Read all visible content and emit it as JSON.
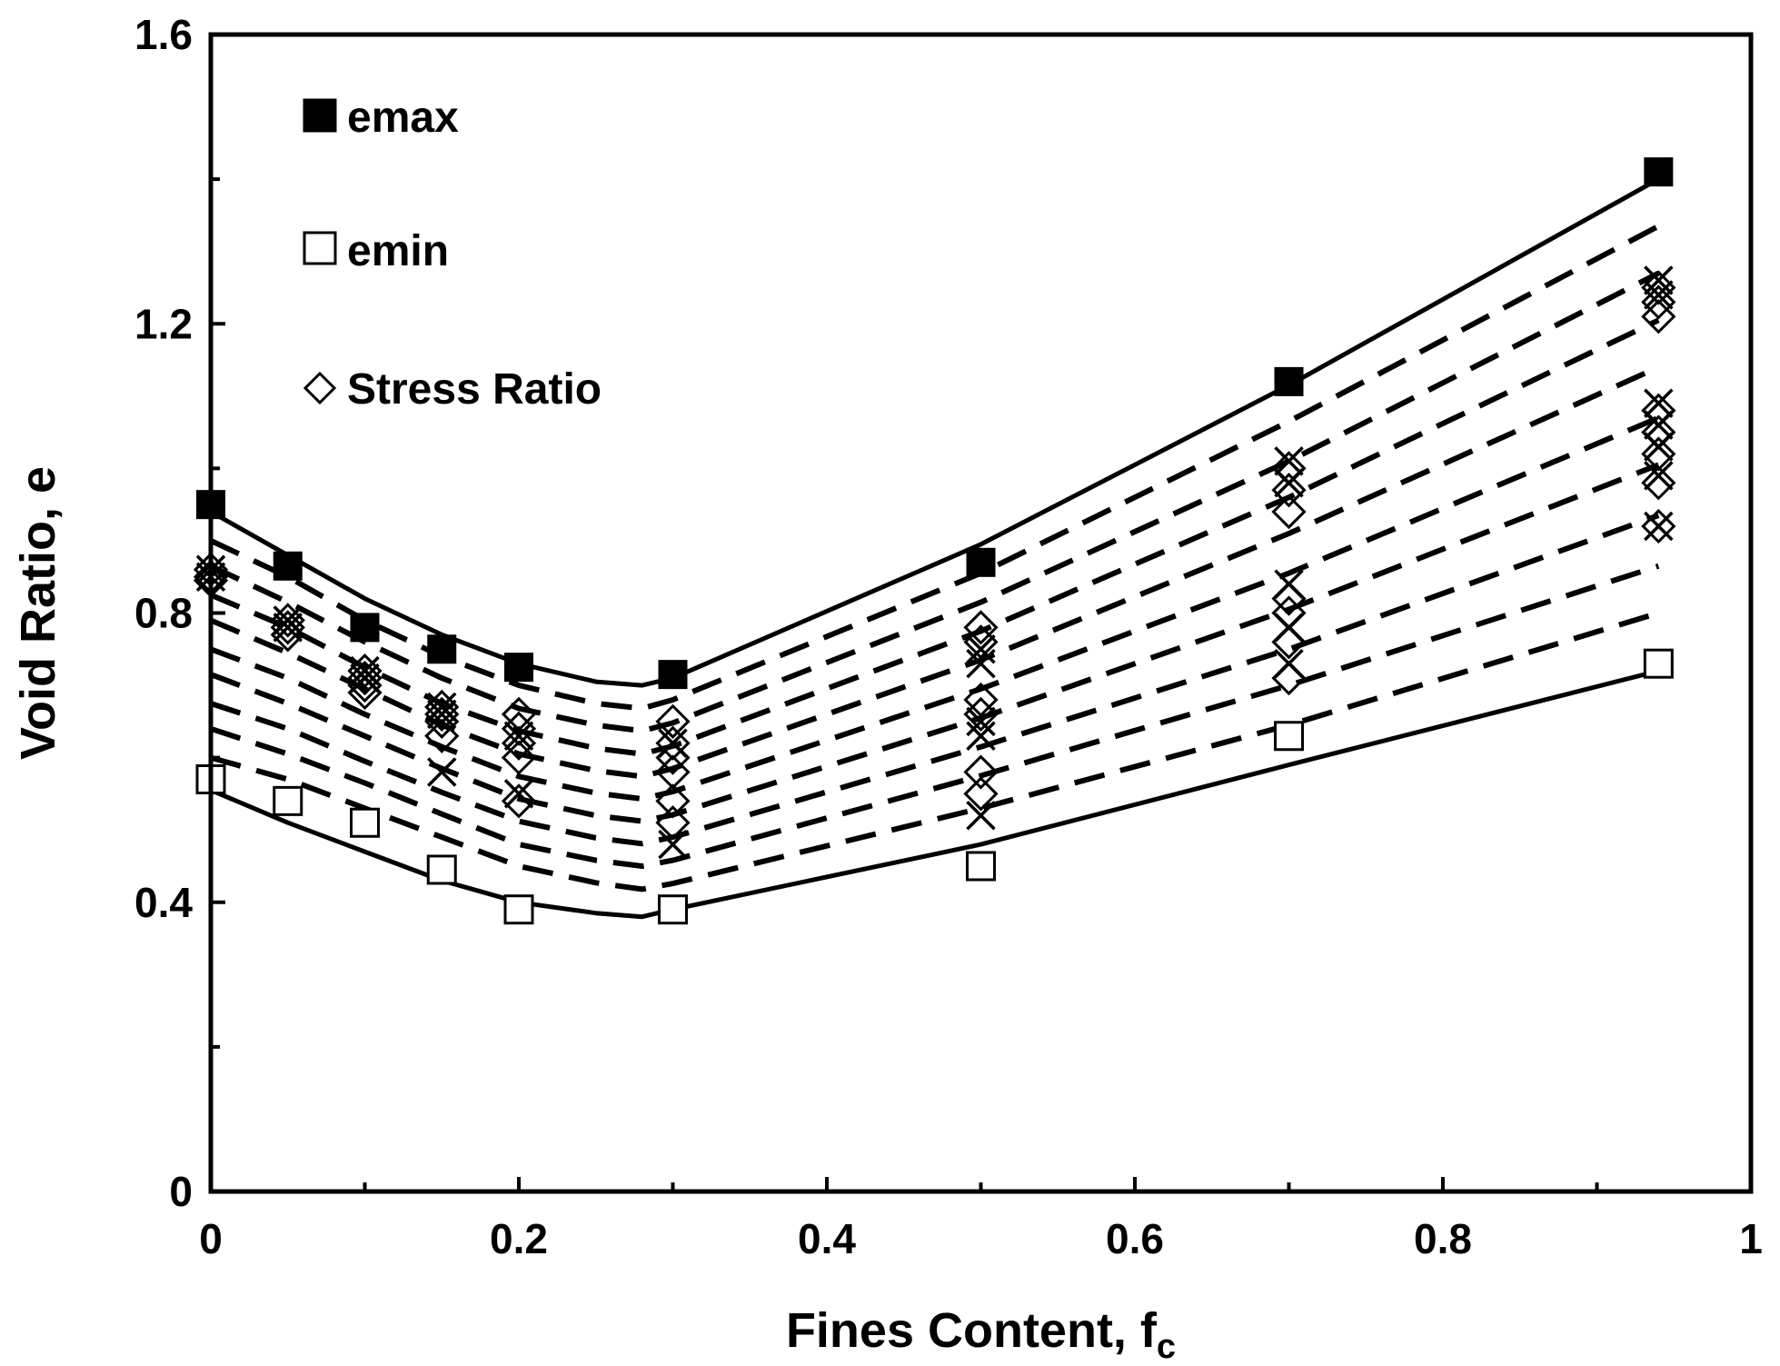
{
  "chart_data": {
    "type": "scatter",
    "title": "",
    "xlabel": "Fines Content, f",
    "xlabel_subscript": "c",
    "ylabel": "Void Ratio, e",
    "xlim": [
      0,
      1
    ],
    "ylim": [
      0,
      1.6
    ],
    "x_ticks": [
      "0",
      "0.2",
      "0.4",
      "0.6",
      "0.8",
      "1"
    ],
    "y_ticks": [
      "0",
      "0.4",
      "0.8",
      "1.2",
      "1.6"
    ],
    "grid": false,
    "legend_position": "top-left",
    "legend": [
      "emax",
      "emin",
      "Stress Ratio"
    ],
    "series": [
      {
        "name": "emax",
        "marker": "filled-square",
        "points": [
          [
            0,
            0.95
          ],
          [
            0.05,
            0.865
          ],
          [
            0.1,
            0.78
          ],
          [
            0.15,
            0.75
          ],
          [
            0.2,
            0.725
          ],
          [
            0.3,
            0.715
          ],
          [
            0.5,
            0.87
          ],
          [
            0.7,
            1.12
          ],
          [
            0.94,
            1.41
          ]
        ]
      },
      {
        "name": "emin",
        "marker": "open-square",
        "points": [
          [
            0,
            0.57
          ],
          [
            0.05,
            0.54
          ],
          [
            0.1,
            0.51
          ],
          [
            0.15,
            0.445
          ],
          [
            0.2,
            0.39
          ],
          [
            0.3,
            0.39
          ],
          [
            0.5,
            0.45
          ],
          [
            0.7,
            0.63
          ],
          [
            0.94,
            0.73
          ]
        ]
      },
      {
        "name": "Stress Ratio",
        "marker": "open-diamond",
        "points": [
          [
            0,
            0.86
          ],
          [
            0,
            0.85
          ],
          [
            0,
            0.845
          ],
          [
            0.05,
            0.79
          ],
          [
            0.05,
            0.78
          ],
          [
            0.05,
            0.77
          ],
          [
            0.1,
            0.72
          ],
          [
            0.1,
            0.71
          ],
          [
            0.1,
            0.7
          ],
          [
            0.1,
            0.69
          ],
          [
            0.15,
            0.67
          ],
          [
            0.15,
            0.66
          ],
          [
            0.15,
            0.65
          ],
          [
            0.15,
            0.63
          ],
          [
            0.2,
            0.66
          ],
          [
            0.2,
            0.64
          ],
          [
            0.2,
            0.62
          ],
          [
            0.2,
            0.6
          ],
          [
            0.2,
            0.54
          ],
          [
            0.3,
            0.65
          ],
          [
            0.3,
            0.62
          ],
          [
            0.3,
            0.6
          ],
          [
            0.3,
            0.58
          ],
          [
            0.3,
            0.54
          ],
          [
            0.3,
            0.51
          ],
          [
            0.5,
            0.78
          ],
          [
            0.5,
            0.76
          ],
          [
            0.5,
            0.68
          ],
          [
            0.5,
            0.66
          ],
          [
            0.5,
            0.58
          ],
          [
            0.5,
            0.55
          ],
          [
            0.7,
            1.0
          ],
          [
            0.7,
            0.97
          ],
          [
            0.7,
            0.94
          ],
          [
            0.7,
            0.82
          ],
          [
            0.7,
            0.8
          ],
          [
            0.7,
            0.76
          ],
          [
            0.7,
            0.71
          ],
          [
            0.94,
            1.25
          ],
          [
            0.94,
            1.23
          ],
          [
            0.94,
            1.21
          ],
          [
            0.94,
            1.08
          ],
          [
            0.94,
            1.05
          ],
          [
            0.94,
            1.02
          ],
          [
            0.94,
            0.98
          ],
          [
            0.94,
            0.92
          ]
        ]
      },
      {
        "marker": "x-cross",
        "points": [
          [
            0,
            0.86
          ],
          [
            0,
            0.85
          ],
          [
            0.05,
            0.79
          ],
          [
            0.05,
            0.78
          ],
          [
            0.1,
            0.72
          ],
          [
            0.1,
            0.71
          ],
          [
            0.15,
            0.67
          ],
          [
            0.15,
            0.66
          ],
          [
            0.15,
            0.58
          ],
          [
            0.2,
            0.63
          ],
          [
            0.2,
            0.55
          ],
          [
            0.3,
            0.62
          ],
          [
            0.3,
            0.48
          ],
          [
            0.5,
            0.75
          ],
          [
            0.5,
            0.73
          ],
          [
            0.5,
            0.65
          ],
          [
            0.5,
            0.63
          ],
          [
            0.5,
            0.52
          ],
          [
            0.7,
            1.01
          ],
          [
            0.7,
            0.98
          ],
          [
            0.7,
            0.84
          ],
          [
            0.7,
            0.78
          ],
          [
            0.7,
            0.73
          ],
          [
            0.94,
            1.26
          ],
          [
            0.94,
            1.24
          ],
          [
            0.94,
            1.09
          ],
          [
            0.94,
            1.06
          ],
          [
            0.94,
            1.03
          ],
          [
            0.94,
            0.99
          ],
          [
            0.94,
            0.92
          ]
        ]
      }
    ],
    "curves": [
      {
        "style": "solid",
        "points": [
          [
            0,
            0.94
          ],
          [
            0.05,
            0.88
          ],
          [
            0.1,
            0.82
          ],
          [
            0.15,
            0.77
          ],
          [
            0.2,
            0.73
          ],
          [
            0.25,
            0.705
          ],
          [
            0.28,
            0.7
          ],
          [
            0.3,
            0.71
          ],
          [
            0.5,
            0.895
          ],
          [
            0.7,
            1.115
          ],
          [
            0.94,
            1.4
          ]
        ]
      },
      {
        "style": "solid",
        "points": [
          [
            0,
            0.555
          ],
          [
            0.05,
            0.51
          ],
          [
            0.1,
            0.47
          ],
          [
            0.15,
            0.43
          ],
          [
            0.2,
            0.4
          ],
          [
            0.25,
            0.385
          ],
          [
            0.28,
            0.38
          ],
          [
            0.3,
            0.39
          ],
          [
            0.5,
            0.48
          ],
          [
            0.7,
            0.59
          ],
          [
            0.94,
            0.72
          ]
        ]
      },
      {
        "style": "dashed",
        "points": [
          [
            0,
            0.9
          ],
          [
            0.05,
            0.85
          ],
          [
            0.1,
            0.79
          ],
          [
            0.15,
            0.74
          ],
          [
            0.2,
            0.7
          ],
          [
            0.25,
            0.675
          ],
          [
            0.28,
            0.668
          ],
          [
            0.3,
            0.68
          ],
          [
            0.5,
            0.855
          ],
          [
            0.7,
            1.065
          ],
          [
            0.94,
            1.335
          ]
        ]
      },
      {
        "style": "dashed",
        "points": [
          [
            0,
            0.865
          ],
          [
            0.05,
            0.815
          ],
          [
            0.1,
            0.76
          ],
          [
            0.15,
            0.71
          ],
          [
            0.2,
            0.668
          ],
          [
            0.25,
            0.645
          ],
          [
            0.28,
            0.637
          ],
          [
            0.3,
            0.648
          ],
          [
            0.5,
            0.815
          ],
          [
            0.7,
            1.01
          ],
          [
            0.94,
            1.27
          ]
        ]
      },
      {
        "style": "dashed",
        "points": [
          [
            0,
            0.825
          ],
          [
            0.05,
            0.78
          ],
          [
            0.1,
            0.725
          ],
          [
            0.15,
            0.675
          ],
          [
            0.2,
            0.637
          ],
          [
            0.25,
            0.613
          ],
          [
            0.28,
            0.605
          ],
          [
            0.3,
            0.616
          ],
          [
            0.5,
            0.775
          ],
          [
            0.7,
            0.96
          ],
          [
            0.94,
            1.205
          ]
        ]
      },
      {
        "style": "dashed",
        "points": [
          [
            0,
            0.79
          ],
          [
            0.05,
            0.745
          ],
          [
            0.1,
            0.695
          ],
          [
            0.15,
            0.645
          ],
          [
            0.2,
            0.605
          ],
          [
            0.25,
            0.582
          ],
          [
            0.28,
            0.574
          ],
          [
            0.3,
            0.585
          ],
          [
            0.5,
            0.735
          ],
          [
            0.7,
            0.91
          ],
          [
            0.94,
            1.14
          ]
        ]
      },
      {
        "style": "dashed",
        "points": [
          [
            0,
            0.75
          ],
          [
            0.05,
            0.71
          ],
          [
            0.1,
            0.66
          ],
          [
            0.15,
            0.615
          ],
          [
            0.2,
            0.574
          ],
          [
            0.25,
            0.551
          ],
          [
            0.28,
            0.543
          ],
          [
            0.3,
            0.553
          ],
          [
            0.5,
            0.695
          ],
          [
            0.7,
            0.855
          ],
          [
            0.94,
            1.07
          ]
        ]
      },
      {
        "style": "dashed",
        "points": [
          [
            0,
            0.715
          ],
          [
            0.05,
            0.675
          ],
          [
            0.1,
            0.63
          ],
          [
            0.15,
            0.585
          ],
          [
            0.2,
            0.543
          ],
          [
            0.25,
            0.52
          ],
          [
            0.28,
            0.512
          ],
          [
            0.3,
            0.521
          ],
          [
            0.5,
            0.655
          ],
          [
            0.7,
            0.805
          ],
          [
            0.94,
            1.005
          ]
        ]
      },
      {
        "style": "dashed",
        "points": [
          [
            0,
            0.675
          ],
          [
            0.05,
            0.64
          ],
          [
            0.1,
            0.595
          ],
          [
            0.15,
            0.552
          ],
          [
            0.2,
            0.512
          ],
          [
            0.25,
            0.489
          ],
          [
            0.28,
            0.481
          ],
          [
            0.3,
            0.49
          ],
          [
            0.5,
            0.615
          ],
          [
            0.7,
            0.75
          ],
          [
            0.94,
            0.935
          ]
        ]
      },
      {
        "style": "dashed",
        "points": [
          [
            0,
            0.64
          ],
          [
            0.05,
            0.605
          ],
          [
            0.1,
            0.565
          ],
          [
            0.15,
            0.522
          ],
          [
            0.2,
            0.48
          ],
          [
            0.25,
            0.458
          ],
          [
            0.28,
            0.45
          ],
          [
            0.3,
            0.458
          ],
          [
            0.5,
            0.575
          ],
          [
            0.7,
            0.7
          ],
          [
            0.94,
            0.865
          ]
        ]
      },
      {
        "style": "dashed",
        "points": [
          [
            0,
            0.6
          ],
          [
            0.05,
            0.57
          ],
          [
            0.1,
            0.53
          ],
          [
            0.15,
            0.49
          ],
          [
            0.2,
            0.45
          ],
          [
            0.25,
            0.427
          ],
          [
            0.28,
            0.418
          ],
          [
            0.3,
            0.426
          ],
          [
            0.5,
            0.53
          ],
          [
            0.7,
            0.645
          ],
          [
            0.94,
            0.8
          ]
        ]
      }
    ]
  }
}
